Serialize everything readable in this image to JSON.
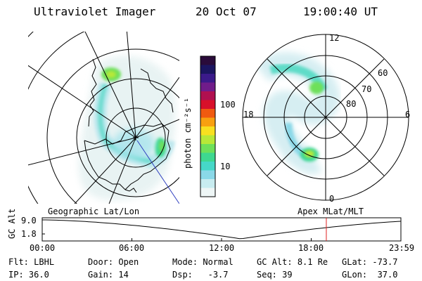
{
  "header": {
    "instrument": "Ultraviolet Imager",
    "date": "20 Oct 07",
    "time": "19:00:40 UT"
  },
  "colorbar": {
    "unit_label": "photon cm⁻²s⁻¹",
    "ticks": [
      {
        "value": 100,
        "label": "100"
      },
      {
        "value": 10,
        "label": "10"
      }
    ],
    "colors": [
      "#2a0b3a",
      "#1b1560",
      "#3b1a8a",
      "#701c8a",
      "#b01050",
      "#d8102a",
      "#f05a10",
      "#f8a010",
      "#f8e020",
      "#b8e838",
      "#6ee05a",
      "#3ed890",
      "#46d8c8",
      "#8ad8e8",
      "#c8ecf0",
      "#eef6f6"
    ]
  },
  "geo_panel": {
    "title": "Geographic Lat/Lon"
  },
  "mag_panel": {
    "title": "Apex MLat/MLT",
    "mlt_labels": {
      "top": "12",
      "left": "18",
      "right": "6",
      "bottom": "0"
    },
    "lat_labels": [
      "60",
      "70",
      "80"
    ]
  },
  "timeline": {
    "ylabel": "GC Alt",
    "yticks": [
      "9.0",
      "1.8"
    ],
    "xticks": [
      "00:00",
      "06:00",
      "12:00",
      "18:00",
      "23:59"
    ],
    "current_time_hours": 19.01
  },
  "status": {
    "row1": [
      {
        "key": "Flt:",
        "value": "LBHL"
      },
      {
        "key": "Door:",
        "value": "Open"
      },
      {
        "key": "Mode:",
        "value": "Normal"
      },
      {
        "key": "GC Alt:",
        "value": "8.1 Re"
      },
      {
        "key": "GLat:",
        "value": "-73.7"
      }
    ],
    "row2": [
      {
        "key": "IP:",
        "value": "36.0"
      },
      {
        "key": "Gain:",
        "value": "14"
      },
      {
        "key": "Dsp:",
        "value": "-3.7"
      },
      {
        "key": "Seq:",
        "value": "39"
      },
      {
        "key": "GLon:",
        "value": "37.0"
      }
    ]
  }
}
